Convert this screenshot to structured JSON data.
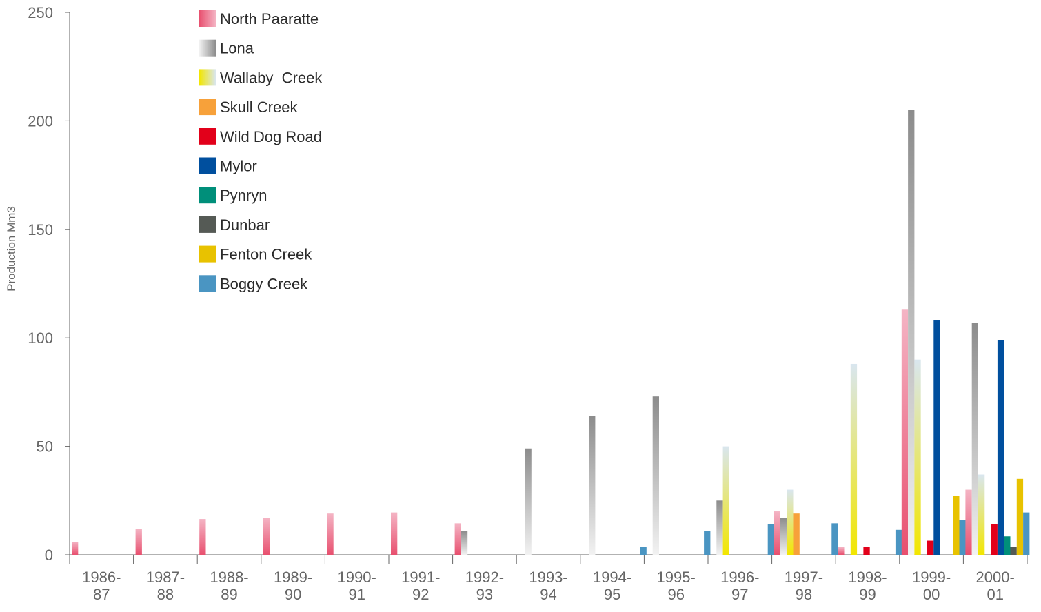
{
  "chart_data": {
    "type": "bar",
    "title": "",
    "xlabel": "",
    "ylabel": "Production Mm3",
    "ylim": [
      0,
      250
    ],
    "yticks": [
      "0",
      "50",
      "100",
      "150",
      "200",
      "250"
    ],
    "grid": false,
    "legend_position": "top-left",
    "categories": [
      [
        "1986-",
        "87"
      ],
      [
        "1987-",
        "88"
      ],
      [
        "1988-",
        "89"
      ],
      [
        "1989-",
        "90"
      ],
      [
        "1990-",
        "91"
      ],
      [
        "1991-",
        "92"
      ],
      [
        "1992-",
        "93"
      ],
      [
        "1993-",
        "94"
      ],
      [
        "1994-",
        "95"
      ],
      [
        "1995-",
        "96"
      ],
      [
        "1996-",
        "97"
      ],
      [
        "1997-",
        "98"
      ],
      [
        "1998-",
        "99"
      ],
      [
        "1999-",
        "00"
      ],
      [
        "2000-",
        "01"
      ]
    ],
    "series": [
      {
        "name": "North Paaratte",
        "color": "#d4145a",
        "gradient": [
          "#e8506f",
          "#f4b4c4"
        ],
        "values": [
          6,
          12,
          16.5,
          17,
          19,
          19.5,
          14.5,
          0,
          0,
          0,
          0,
          20,
          3.5,
          113,
          30
        ]
      },
      {
        "name": "Lona",
        "color": "#8c8c8c",
        "gradient": [
          "#f2f2f2",
          "#8c8c8c"
        ],
        "values": [
          0,
          0,
          0,
          0,
          0,
          0,
          11,
          49,
          64,
          73,
          25,
          17,
          0,
          205,
          107
        ]
      },
      {
        "name": "Wallaby  Creek",
        "color": "#f2e600",
        "gradient": [
          "#f2e600",
          "#d9e6ef"
        ],
        "values": [
          0,
          0,
          0,
          0,
          0,
          0,
          0,
          0,
          0,
          0,
          50,
          30,
          88,
          90,
          37
        ]
      },
      {
        "name": "Skull Creek",
        "color": "#f7a13a",
        "values": [
          0,
          0,
          0,
          0,
          0,
          0,
          0,
          0,
          0,
          0,
          0,
          19,
          0,
          0,
          0
        ]
      },
      {
        "name": "Wild Dog Road",
        "color": "#e2001a",
        "values": [
          0,
          0,
          0,
          0,
          0,
          0,
          0,
          0,
          0,
          0,
          0,
          0,
          3.5,
          6.5,
          14
        ]
      },
      {
        "name": "Mylor",
        "color": "#004f9e",
        "values": [
          0,
          0,
          0,
          0,
          0,
          0,
          0,
          0,
          0,
          0,
          0,
          0,
          0,
          108,
          99
        ]
      },
      {
        "name": "Pynryn",
        "color": "#008f7a",
        "values": [
          0,
          0,
          0,
          0,
          0,
          0,
          0,
          0,
          0,
          0,
          0,
          0,
          0,
          0,
          8.5
        ]
      },
      {
        "name": "Dunbar",
        "color": "#555a55",
        "values": [
          0,
          0,
          0,
          0,
          0,
          0,
          0,
          0,
          0,
          0,
          0,
          0,
          0,
          0,
          3.5
        ]
      },
      {
        "name": "Fenton Creek",
        "color": "#e8c200",
        "values": [
          0,
          0,
          0,
          0,
          0,
          0,
          0,
          0,
          0,
          0,
          0,
          0,
          0,
          27,
          35
        ]
      },
      {
        "name": "Boggy Creek",
        "color": "#4a95c2",
        "values": [
          0,
          0,
          0,
          0,
          0,
          0,
          0,
          0,
          3.5,
          11,
          14,
          14.5,
          11.5,
          16,
          19.5
        ]
      }
    ]
  }
}
